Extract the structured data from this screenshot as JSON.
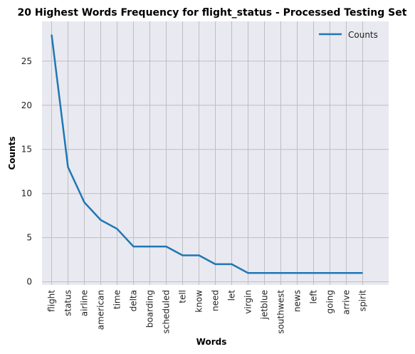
{
  "chart_data": {
    "type": "line",
    "title": "20 Highest Words Frequency for flight_status - Processed Testing Set",
    "xlabel": "Words",
    "ylabel": "Counts",
    "categories": [
      "flight",
      "status",
      "airline",
      "american",
      "time",
      "delta",
      "boarding",
      "scheduled",
      "tell",
      "know",
      "need",
      "let",
      "virgin",
      "jetblue",
      "southwest",
      "news",
      "left",
      "going",
      "arrive",
      "spirit"
    ],
    "series": [
      {
        "name": "Counts",
        "values": [
          28,
          13,
          9,
          7,
          6,
          4,
          4,
          4,
          3,
          3,
          2,
          2,
          1,
          1,
          1,
          1,
          1,
          1,
          1,
          1
        ],
        "color": "#1f77b4"
      }
    ],
    "yticks": [
      0,
      5,
      10,
      15,
      20,
      25
    ],
    "ylim": [
      -0.35,
      29.5
    ],
    "grid": true,
    "legend": "top-right",
    "background": "#e9e9f1",
    "grid_color": "#bfbfbf"
  }
}
